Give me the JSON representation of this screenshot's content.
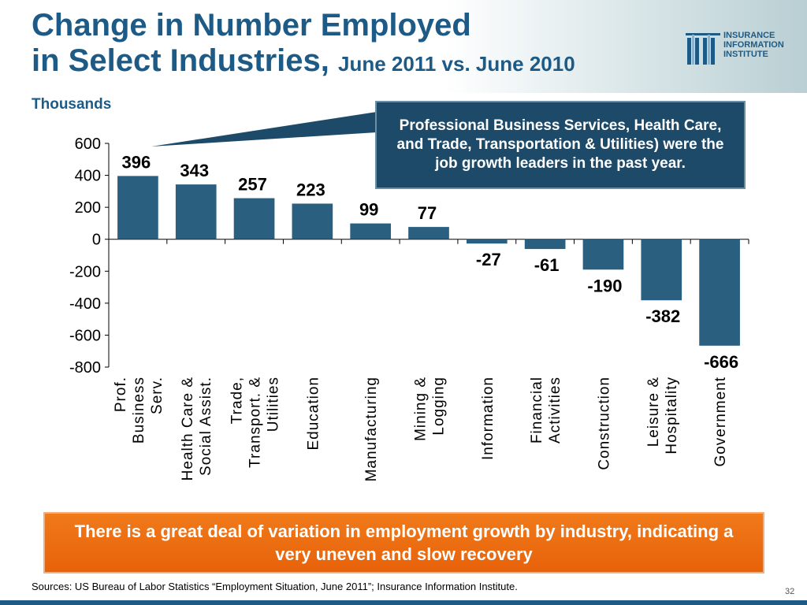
{
  "slide": {
    "title_line1": "Change in Number Employed",
    "title_line2": "in Select Industries,",
    "title_date": "June 2011 vs. June 2010",
    "logo_text": [
      "INSURANCE",
      "INFORMATION",
      "INSTITUTE"
    ],
    "units": "Thousands",
    "callout": "Professional Business Services, Health Care, and Trade, Transportation & Utilities) were the job growth leaders in the past year.",
    "banner": "There is a great deal of variation in employment growth by industry, indicating a very uneven and slow recovery",
    "sources": "Sources: US Bureau of Labor Statistics “Employment Situation, June 2011”; Insurance Information Institute.",
    "page_number": "32"
  },
  "colors": {
    "bar": "#2b5f7f",
    "title": "#1d5b86",
    "banner": "#e8620a",
    "callout": "#1d4a68"
  },
  "chart_data": {
    "type": "bar",
    "title": "",
    "xlabel": "",
    "ylabel": "",
    "ylim": [
      -800,
      600
    ],
    "yticks": [
      600,
      400,
      200,
      0,
      -200,
      -400,
      -600,
      -800
    ],
    "grid": false,
    "categories": [
      [
        "Prof.",
        "Business",
        "Serv."
      ],
      [
        "Health Care &",
        "Social Assist."
      ],
      [
        "Trade,",
        "Transport. &",
        "Utilities"
      ],
      [
        "Education"
      ],
      [
        "Manufacturing"
      ],
      [
        "Mining &",
        "Logging"
      ],
      [
        "Information"
      ],
      [
        "Financial",
        "Activities"
      ],
      [
        "Construction"
      ],
      [
        "Leisure &",
        "Hospitality"
      ],
      [
        "Government"
      ]
    ],
    "values": [
      396,
      343,
      257,
      223,
      99,
      77,
      -27,
      -61,
      -190,
      -382,
      -666
    ],
    "data_labels": [
      "396",
      "343",
      "257",
      "223",
      "99",
      "77",
      "-27",
      "-61",
      "-190",
      "-382",
      "-666"
    ]
  }
}
